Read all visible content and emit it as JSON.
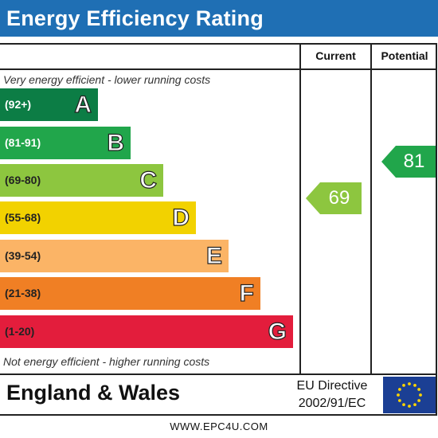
{
  "title": "Energy Efficiency Rating",
  "columns": {
    "current": "Current",
    "potential": "Potential"
  },
  "top_caption": "Very energy efficient - lower running costs",
  "bottom_caption": "Not energy efficient - higher running costs",
  "bands": [
    {
      "range": "(92+)",
      "letter": "A",
      "color": "#0c7d45",
      "range_color": "#ffffff"
    },
    {
      "range": "(81-91)",
      "letter": "B",
      "color": "#21a64b",
      "range_color": "#ffffff"
    },
    {
      "range": "(69-80)",
      "letter": "C",
      "color": "#8dc63f",
      "range_color": "#222222"
    },
    {
      "range": "(55-68)",
      "letter": "D",
      "color": "#f2d200",
      "range_color": "#222222"
    },
    {
      "range": "(39-54)",
      "letter": "E",
      "color": "#fbb466",
      "range_color": "#222222"
    },
    {
      "range": "(21-38)",
      "letter": "F",
      "color": "#f07f24",
      "range_color": "#222222"
    },
    {
      "range": "(1-20)",
      "letter": "G",
      "color": "#e31d3c",
      "range_color": "#222222"
    }
  ],
  "current_rating": {
    "value": "69",
    "color": "#8dc63f"
  },
  "potential_rating": {
    "value": "81",
    "color": "#21a64b"
  },
  "country": "England & Wales",
  "directive": {
    "line1": "EU Directive",
    "line2": "2002/91/EC"
  },
  "flag_icon": "eu-flag-icon",
  "footer": "WWW.EPC4U.COM"
}
